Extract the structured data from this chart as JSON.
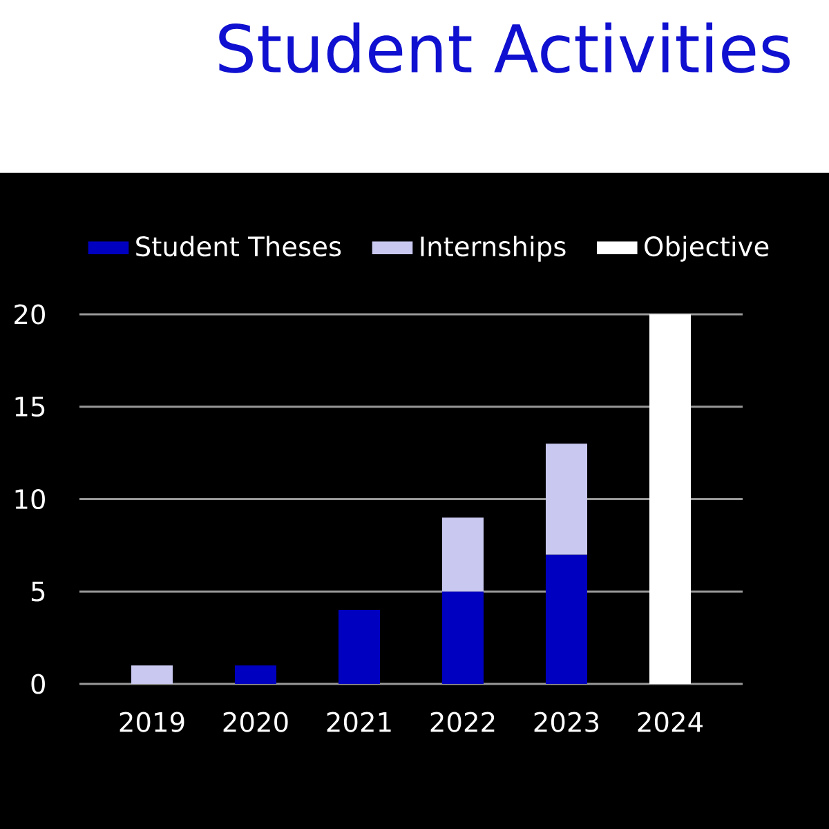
{
  "chart_data": {
    "type": "bar",
    "title": "Student Activities",
    "stacked": true,
    "categories": [
      "2019",
      "2020",
      "2021",
      "2022",
      "2023",
      "2024"
    ],
    "series": [
      {
        "name": "Student Theses",
        "color": "#0000c0",
        "values": [
          null,
          1,
          4,
          5,
          7,
          null
        ]
      },
      {
        "name": "Internships",
        "color": "#c8c8f0",
        "values": [
          1,
          null,
          null,
          4,
          6,
          null
        ]
      },
      {
        "name": "Objective",
        "color": "#ffffff",
        "values": [
          null,
          null,
          null,
          null,
          null,
          20
        ]
      }
    ],
    "ylim": [
      0,
      20
    ],
    "yticks": [
      0,
      5,
      10,
      15,
      20
    ],
    "grid": "y",
    "legend": "top left"
  }
}
